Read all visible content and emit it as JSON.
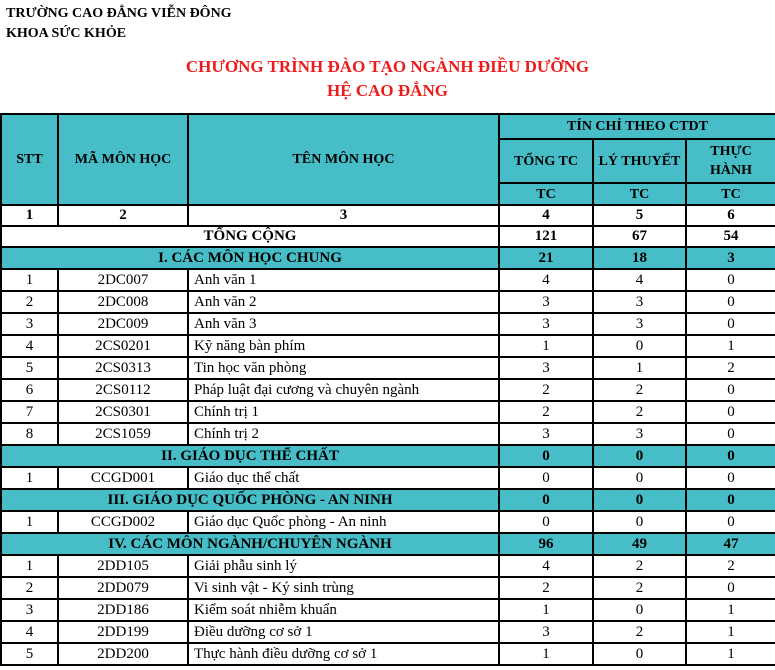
{
  "header": {
    "org_line1": "TRƯỜNG CAO ĐẲNG VIỄN ĐÔNG",
    "org_line2": "KHOA SỨC KHỎE",
    "title_line1": "CHƯƠNG TRÌNH ĐÀO TẠO NGÀNH ĐIỀU DƯỠNG",
    "title_line2": "HỆ CAO ĐẲNG"
  },
  "colors": {
    "section_bg": "#46BDC7",
    "title_red": "#ED1C1C",
    "border": "#000000"
  },
  "table": {
    "credit_group_header": "TÍN CHỈ THEO CTDT",
    "col_headers": {
      "stt": "STT",
      "code": "MÃ MÔN HỌC",
      "name": "TÊN MÔN HỌC",
      "total": "TỔNG TC",
      "theory": "LÝ THUYẾT",
      "practice": "THỰC HÀNH"
    },
    "unit_row": {
      "total": "TC",
      "theory": "TC",
      "practice": "TC"
    },
    "index_row": [
      "1",
      "2",
      "3",
      "4",
      "5",
      "6"
    ],
    "grand_total": {
      "label": "TỔNG CỘNG",
      "total": "121",
      "theory": "67",
      "practice": "54"
    },
    "rows": [
      {
        "type": "section",
        "label": "I. CÁC MÔN HỌC CHUNG",
        "total": "21",
        "theory": "18",
        "practice": "3"
      },
      {
        "type": "course",
        "stt": "1",
        "code": "2DC007",
        "name": "Anh văn 1",
        "total": "4",
        "theory": "4",
        "practice": "0"
      },
      {
        "type": "course",
        "stt": "2",
        "code": "2DC008",
        "name": "Anh văn 2",
        "total": "3",
        "theory": "3",
        "practice": "0"
      },
      {
        "type": "course",
        "stt": "3",
        "code": "2DC009",
        "name": "Anh văn 3",
        "total": "3",
        "theory": "3",
        "practice": "0"
      },
      {
        "type": "course",
        "stt": "4",
        "code": "2CS0201",
        "name": "Kỹ năng bàn phím",
        "total": "1",
        "theory": "0",
        "practice": "1"
      },
      {
        "type": "course",
        "stt": "5",
        "code": "2CS0313",
        "name": "Tin học văn phòng",
        "total": "3",
        "theory": "1",
        "practice": "2"
      },
      {
        "type": "course",
        "stt": "6",
        "code": "2CS0112",
        "name": "Pháp luật đại cương và chuyên ngành",
        "total": "2",
        "theory": "2",
        "practice": "0"
      },
      {
        "type": "course",
        "stt": "7",
        "code": "2CS0301",
        "name": "Chính trị 1",
        "total": "2",
        "theory": "2",
        "practice": "0"
      },
      {
        "type": "course",
        "stt": "8",
        "code": "2CS1059",
        "name": "Chính trị 2",
        "total": "3",
        "theory": "3",
        "practice": "0"
      },
      {
        "type": "section",
        "label": "II. GIÁO DỤC THỂ CHẤT",
        "total": "0",
        "theory": "0",
        "practice": "0"
      },
      {
        "type": "course",
        "stt": "1",
        "code": "CCGD001",
        "name": "Giáo dục thể chất",
        "total": "0",
        "theory": "0",
        "practice": "0"
      },
      {
        "type": "section",
        "label": "III. GIÁO DỤC QUỐC PHÒNG - AN NINH",
        "total": "0",
        "theory": "0",
        "practice": "0"
      },
      {
        "type": "course",
        "stt": "1",
        "code": "CCGD002",
        "name": "Giáo dục Quốc phòng - An ninh",
        "total": "0",
        "theory": "0",
        "practice": "0"
      },
      {
        "type": "section",
        "label": "IV. CÁC MÔN NGÀNH/CHUYÊN NGÀNH",
        "total": "96",
        "theory": "49",
        "practice": "47"
      },
      {
        "type": "course",
        "stt": "1",
        "code": "2DD105",
        "name": "Giải phẫu sinh lý",
        "total": "4",
        "theory": "2",
        "practice": "2"
      },
      {
        "type": "course",
        "stt": "2",
        "code": "2DD079",
        "name": "Vi sinh vật - Ký sinh trùng",
        "total": "2",
        "theory": "2",
        "practice": "0"
      },
      {
        "type": "course",
        "stt": "3",
        "code": "2DD186",
        "name": "Kiểm soát nhiễm khuẩn",
        "total": "1",
        "theory": "0",
        "practice": "1"
      },
      {
        "type": "course",
        "stt": "4",
        "code": "2DD199",
        "name": "Điều dưỡng cơ sở 1",
        "total": "3",
        "theory": "2",
        "practice": "1"
      },
      {
        "type": "course",
        "stt": "5",
        "code": "2DD200",
        "name": "Thực hành điều dưỡng cơ sở 1",
        "total": "1",
        "theory": "0",
        "practice": "1"
      }
    ]
  }
}
